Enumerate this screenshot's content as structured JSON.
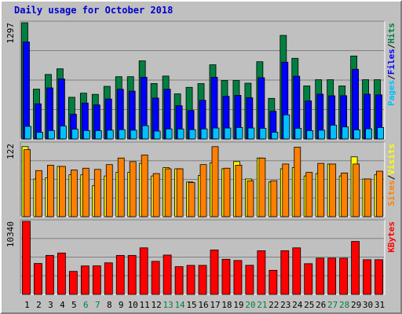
{
  "title": "Daily usage for October 2018",
  "colors": {
    "background": "#c0c0c0",
    "title": "#0000cc",
    "hits": "#008040",
    "files": "#0000ff",
    "pages": "#00c0ff",
    "visits": "#ffff00",
    "sites": "#ff8000",
    "kbytes": "#ff0000",
    "weekday": "#000000",
    "weekend": "#008040",
    "grid": "#808080"
  },
  "chart_data": [
    {
      "type": "bar",
      "panel": "hits-files-pages",
      "ymax_label": "1297",
      "ylim": [
        0,
        1297
      ],
      "side_labels": [
        "Pages",
        "/",
        "Files",
        "/",
        "Hits"
      ],
      "categories": [
        "1",
        "2",
        "3",
        "4",
        "5",
        "6",
        "7",
        "8",
        "9",
        "10",
        "11",
        "12",
        "13",
        "14",
        "15",
        "16",
        "17",
        "18",
        "19",
        "20",
        "21",
        "22",
        "23",
        "24",
        "25",
        "26",
        "27",
        "28",
        "29",
        "30",
        "31"
      ],
      "weekend_days": [
        "6",
        "7",
        "13",
        "14",
        "20",
        "21",
        "27",
        "28"
      ],
      "series": [
        {
          "name": "Hits",
          "values": [
            1297,
            556,
            720,
            783,
            465,
            511,
            498,
            587,
            695,
            695,
            872,
            619,
            702,
            503,
            576,
            618,
            828,
            652,
            652,
            622,
            862,
            453,
            1156,
            900,
            592,
            661,
            661,
            592,
            926,
            661,
            661
          ]
        },
        {
          "name": "Files",
          "values": [
            1083,
            392,
            570,
            670,
            276,
            401,
            380,
            446,
            555,
            534,
            689,
            457,
            555,
            371,
            318,
            432,
            688,
            476,
            487,
            460,
            684,
            309,
            857,
            700,
            425,
            500,
            482,
            483,
            778,
            500,
            492
          ]
        },
        {
          "name": "Pages",
          "values": [
            141,
            75,
            94,
            145,
            109,
            94,
            93,
            98,
            104,
            98,
            148,
            88,
            112,
            111,
            104,
            112,
            122,
            122,
            128,
            122,
            119,
            75,
            269,
            119,
            93,
            98,
            154,
            134,
            102,
            113,
            128
          ]
        }
      ]
    },
    {
      "type": "bar",
      "panel": "visits-sites",
      "ymax_label": "122",
      "ylim": [
        0,
        122
      ],
      "side_labels": [
        "Sites",
        "/",
        "Visits"
      ],
      "categories": [
        "1",
        "2",
        "3",
        "4",
        "5",
        "6",
        "7",
        "8",
        "9",
        "10",
        "11",
        "12",
        "13",
        "14",
        "15",
        "16",
        "17",
        "18",
        "19",
        "20",
        "21",
        "22",
        "23",
        "24",
        "25",
        "26",
        "27",
        "28",
        "29",
        "30",
        "31"
      ],
      "series": [
        {
          "name": "Visits",
          "values": [
            117,
            63,
            65,
            84,
            70,
            70,
            52,
            68,
            74,
            74,
            89,
            68,
            82,
            80,
            58,
            69,
            90,
            80,
            92,
            63,
            98,
            58,
            80,
            82,
            68,
            72,
            88,
            68,
            100,
            63,
            70
          ]
        },
        {
          "name": "Sites",
          "values": [
            112,
            77,
            86,
            84,
            78,
            81,
            79,
            87,
            98,
            92,
            103,
            72,
            80,
            80,
            57,
            87,
            117,
            81,
            86,
            60,
            98,
            60,
            88,
            116,
            74,
            89,
            88,
            73,
            88,
            63,
            76
          ]
        }
      ]
    },
    {
      "type": "bar",
      "panel": "kbytes",
      "ymax_label": "10340",
      "ylim": [
        0,
        10340
      ],
      "side_labels": [
        "KBytes"
      ],
      "categories": [
        "1",
        "2",
        "3",
        "4",
        "5",
        "6",
        "7",
        "8",
        "9",
        "10",
        "11",
        "12",
        "13",
        "14",
        "15",
        "16",
        "17",
        "18",
        "19",
        "20",
        "21",
        "22",
        "23",
        "24",
        "25",
        "26",
        "27",
        "28",
        "29",
        "30",
        "31"
      ],
      "series": [
        {
          "name": "KBytes",
          "values": [
            10340,
            4380,
            5520,
            5860,
            3260,
            4030,
            4040,
            4470,
            5520,
            5520,
            6590,
            4680,
            5570,
            3930,
            4110,
            4110,
            6290,
            4970,
            4800,
            4120,
            6180,
            3410,
            6190,
            6590,
            4350,
            5130,
            5140,
            5130,
            7500,
            4910,
            4910
          ]
        }
      ]
    }
  ]
}
